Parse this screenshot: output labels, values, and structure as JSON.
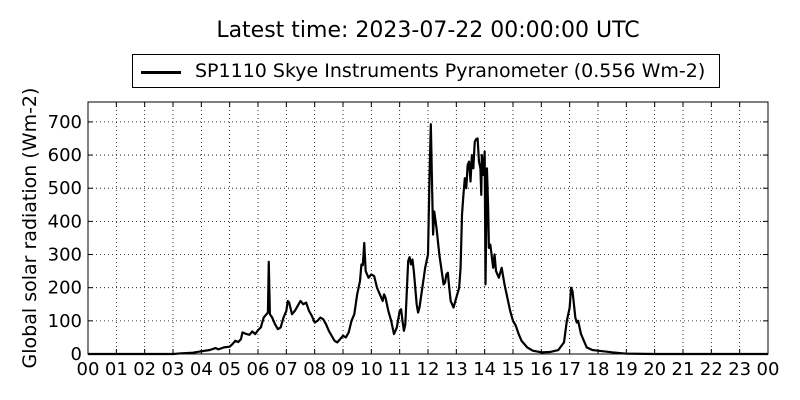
{
  "chart_data": {
    "type": "line",
    "title": "Latest time: 2023-07-22 00:00:00 UTC",
    "ylabel": "Global solar radiation (Wm-2)",
    "xlabel": "",
    "xlim": [
      0,
      24
    ],
    "ylim": [
      0,
      760
    ],
    "grid": true,
    "legend_placement": "top-center",
    "x_tick_labels": [
      "00",
      "01",
      "02",
      "03",
      "04",
      "05",
      "06",
      "07",
      "08",
      "09",
      "10",
      "11",
      "12",
      "13",
      "14",
      "15",
      "16",
      "17",
      "18",
      "19",
      "20",
      "21",
      "22",
      "23",
      "00"
    ],
    "y_ticks": [
      0,
      100,
      200,
      300,
      400,
      500,
      600,
      700
    ],
    "series": [
      {
        "name": "SP1110 Skye Instruments Pyranometer (0.556 Wm-2)",
        "color": "#000000",
        "points": [
          [
            0,
            0
          ],
          [
            1,
            0
          ],
          [
            2,
            0
          ],
          [
            3,
            0
          ],
          [
            3.3,
            2
          ],
          [
            3.7,
            4
          ],
          [
            4.0,
            8
          ],
          [
            4.3,
            12
          ],
          [
            4.5,
            18
          ],
          [
            4.6,
            14
          ],
          [
            4.8,
            20
          ],
          [
            5.0,
            22
          ],
          [
            5.1,
            30
          ],
          [
            5.2,
            40
          ],
          [
            5.3,
            36
          ],
          [
            5.4,
            45
          ],
          [
            5.45,
            65
          ],
          [
            5.6,
            60
          ],
          [
            5.7,
            58
          ],
          [
            5.8,
            68
          ],
          [
            5.9,
            60
          ],
          [
            6.0,
            72
          ],
          [
            6.1,
            80
          ],
          [
            6.2,
            110
          ],
          [
            6.3,
            120
          ],
          [
            6.35,
            125
          ],
          [
            6.38,
            278
          ],
          [
            6.42,
            120
          ],
          [
            6.5,
            110
          ],
          [
            6.6,
            90
          ],
          [
            6.7,
            75
          ],
          [
            6.8,
            80
          ],
          [
            6.9,
            110
          ],
          [
            7.0,
            130
          ],
          [
            7.05,
            160
          ],
          [
            7.1,
            155
          ],
          [
            7.2,
            120
          ],
          [
            7.3,
            130
          ],
          [
            7.4,
            145
          ],
          [
            7.5,
            160
          ],
          [
            7.6,
            150
          ],
          [
            7.7,
            155
          ],
          [
            7.8,
            130
          ],
          [
            7.9,
            115
          ],
          [
            8.0,
            95
          ],
          [
            8.1,
            100
          ],
          [
            8.2,
            110
          ],
          [
            8.3,
            105
          ],
          [
            8.4,
            90
          ],
          [
            8.5,
            70
          ],
          [
            8.6,
            55
          ],
          [
            8.7,
            40
          ],
          [
            8.8,
            35
          ],
          [
            8.9,
            45
          ],
          [
            9.0,
            55
          ],
          [
            9.1,
            50
          ],
          [
            9.2,
            65
          ],
          [
            9.3,
            100
          ],
          [
            9.4,
            120
          ],
          [
            9.5,
            180
          ],
          [
            9.6,
            220
          ],
          [
            9.65,
            270
          ],
          [
            9.7,
            268
          ],
          [
            9.75,
            335
          ],
          [
            9.8,
            250
          ],
          [
            9.9,
            230
          ],
          [
            10.0,
            240
          ],
          [
            10.1,
            235
          ],
          [
            10.2,
            200
          ],
          [
            10.3,
            180
          ],
          [
            10.4,
            160
          ],
          [
            10.45,
            180
          ],
          [
            10.5,
            170
          ],
          [
            10.6,
            130
          ],
          [
            10.7,
            100
          ],
          [
            10.8,
            60
          ],
          [
            10.9,
            80
          ],
          [
            11.0,
            130
          ],
          [
            11.05,
            135
          ],
          [
            11.1,
            100
          ],
          [
            11.15,
            70
          ],
          [
            11.2,
            90
          ],
          [
            11.3,
            280
          ],
          [
            11.35,
            292
          ],
          [
            11.4,
            270
          ],
          [
            11.45,
            285
          ],
          [
            11.5,
            250
          ],
          [
            11.6,
            150
          ],
          [
            11.65,
            125
          ],
          [
            11.7,
            140
          ],
          [
            11.8,
            200
          ],
          [
            11.9,
            260
          ],
          [
            12.0,
            300
          ],
          [
            12.05,
            520
          ],
          [
            12.1,
            693
          ],
          [
            12.15,
            480
          ],
          [
            12.18,
            360
          ],
          [
            12.22,
            430
          ],
          [
            12.3,
            380
          ],
          [
            12.4,
            300
          ],
          [
            12.5,
            240
          ],
          [
            12.55,
            210
          ],
          [
            12.6,
            215
          ],
          [
            12.65,
            240
          ],
          [
            12.7,
            245
          ],
          [
            12.75,
            200
          ],
          [
            12.8,
            160
          ],
          [
            12.9,
            140
          ],
          [
            13.0,
            170
          ],
          [
            13.1,
            200
          ],
          [
            13.15,
            260
          ],
          [
            13.2,
            420
          ],
          [
            13.25,
            480
          ],
          [
            13.3,
            530
          ],
          [
            13.35,
            500
          ],
          [
            13.4,
            570
          ],
          [
            13.45,
            580
          ],
          [
            13.5,
            520
          ],
          [
            13.55,
            600
          ],
          [
            13.6,
            560
          ],
          [
            13.65,
            640
          ],
          [
            13.7,
            648
          ],
          [
            13.75,
            650
          ],
          [
            13.8,
            580
          ],
          [
            13.85,
            560
          ],
          [
            13.88,
            480
          ],
          [
            13.9,
            600
          ],
          [
            13.95,
            540
          ],
          [
            14.0,
            610
          ],
          [
            14.03,
            210
          ],
          [
            14.08,
            560
          ],
          [
            14.12,
            450
          ],
          [
            14.15,
            320
          ],
          [
            14.2,
            330
          ],
          [
            14.3,
            260
          ],
          [
            14.35,
            300
          ],
          [
            14.4,
            250
          ],
          [
            14.5,
            230
          ],
          [
            14.6,
            260
          ],
          [
            14.7,
            210
          ],
          [
            14.8,
            170
          ],
          [
            14.9,
            130
          ],
          [
            15.0,
            100
          ],
          [
            15.1,
            85
          ],
          [
            15.2,
            60
          ],
          [
            15.3,
            40
          ],
          [
            15.5,
            20
          ],
          [
            15.7,
            10
          ],
          [
            16.0,
            5
          ],
          [
            16.3,
            6
          ],
          [
            16.6,
            12
          ],
          [
            16.8,
            35
          ],
          [
            16.9,
            100
          ],
          [
            17.0,
            140
          ],
          [
            17.05,
            200
          ],
          [
            17.1,
            190
          ],
          [
            17.2,
            110
          ],
          [
            17.25,
            95
          ],
          [
            17.3,
            100
          ],
          [
            17.4,
            60
          ],
          [
            17.5,
            40
          ],
          [
            17.6,
            20
          ],
          [
            17.8,
            12
          ],
          [
            18.0,
            10
          ],
          [
            18.5,
            5
          ],
          [
            19.0,
            1
          ],
          [
            20,
            0
          ],
          [
            21,
            0
          ],
          [
            22,
            0
          ],
          [
            23,
            0
          ],
          [
            24,
            0
          ]
        ]
      }
    ]
  }
}
